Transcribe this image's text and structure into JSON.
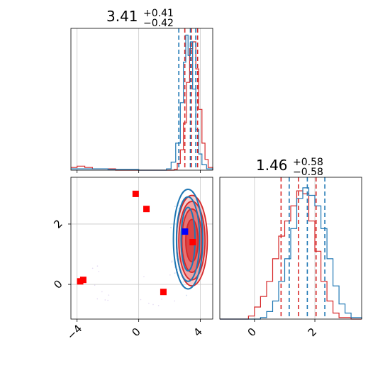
{
  "chart_data": {
    "type": "corner",
    "panels": {
      "hist_x": {
        "title": {
          "value": "3.41",
          "plus": "+0.41",
          "minus": "−0.42"
        },
        "xlim": [
          -4.4,
          4.8
        ],
        "quantiles": {
          "red": [
            2.99,
            3.41,
            3.82
          ],
          "blue": [
            2.6,
            3.35,
            3.7
          ]
        },
        "series": [
          {
            "color": "#d62728",
            "points": [
              [
                -4.4,
                0.2
              ],
              [
                -4.0,
                0.3
              ],
              [
                -3.5,
                0.2
              ],
              [
                -3.0,
                0.1
              ],
              [
                -2.5,
                0.1
              ],
              [
                -1.5,
                0.0
              ],
              [
                0.0,
                0.0
              ],
              [
                1.5,
                0.0
              ],
              [
                2.3,
                0.05
              ],
              [
                2.5,
                0.5
              ],
              [
                2.7,
                1.5
              ],
              [
                2.9,
                3.5
              ],
              [
                3.1,
                6.5
              ],
              [
                3.3,
                9.0
              ],
              [
                3.5,
                9.5
              ],
              [
                3.7,
                7.5
              ],
              [
                3.9,
                4.5
              ],
              [
                4.1,
                2.0
              ],
              [
                4.3,
                0.8
              ],
              [
                4.5,
                0.2
              ],
              [
                4.8,
                0.0
              ]
            ]
          },
          {
            "color": "#1f77b4",
            "points": [
              [
                -4.4,
                0.1
              ],
              [
                -2.0,
                0.05
              ],
              [
                0.0,
                0.0
              ],
              [
                1.8,
                0.1
              ],
              [
                2.1,
                0.6
              ],
              [
                2.4,
                2.0
              ],
              [
                2.7,
                5.0
              ],
              [
                2.9,
                8.0
              ],
              [
                3.05,
                10.0
              ],
              [
                3.2,
                8.5
              ],
              [
                3.35,
                9.5
              ],
              [
                3.5,
                6.0
              ],
              [
                3.7,
                3.0
              ],
              [
                3.9,
                1.2
              ],
              [
                4.1,
                0.4
              ],
              [
                4.4,
                0.1
              ],
              [
                4.8,
                0.0
              ]
            ]
          }
        ]
      },
      "scatter": {
        "xlim": [
          -4.4,
          4.8
        ],
        "ylim": [
          -1.15,
          3.55
        ],
        "xticks": [
          -4,
          0,
          4
        ],
        "yticks": [
          0,
          2
        ],
        "xtick_labels": [
          "−4",
          "0",
          "4"
        ],
        "ytick_labels": [
          "0",
          "2"
        ],
        "red_points": [
          [
            -0.2,
            3.0
          ],
          [
            0.5,
            2.5
          ],
          [
            -3.8,
            0.1
          ],
          [
            -3.6,
            0.15
          ],
          [
            1.6,
            -0.25
          ],
          [
            3.5,
            1.4
          ]
        ],
        "blue_points": [
          [
            3.0,
            1.75
          ]
        ],
        "red_contour": {
          "center": [
            3.45,
            1.45
          ],
          "radii": [
            [
              0.4,
              0.7
            ],
            [
              0.65,
              1.05
            ],
            [
              0.85,
              1.3
            ],
            [
              1.0,
              1.5
            ]
          ]
        },
        "blue_contour": {
          "center": [
            3.2,
            1.5
          ],
          "radii": [
            [
              0.45,
              1.05
            ],
            [
              0.75,
              1.4
            ],
            [
              0.95,
              1.65
            ]
          ]
        }
      },
      "hist_y": {
        "title": {
          "value": "1.46",
          "plus": "+0.58",
          "minus": "−0.58"
        },
        "xlim": [
          -1.15,
          3.55
        ],
        "xticks": [
          0,
          2
        ],
        "xtick_labels": [
          "0",
          "2"
        ],
        "quantiles": {
          "red": [
            0.88,
            1.46,
            2.04
          ],
          "blue": [
            1.15,
            1.75,
            2.33
          ]
        },
        "series": [
          {
            "color": "#d62728",
            "points": [
              [
                -1.15,
                0.0
              ],
              [
                -0.5,
                0.0
              ],
              [
                -0.2,
                0.2
              ],
              [
                0.0,
                0.8
              ],
              [
                0.2,
                1.5
              ],
              [
                0.4,
                2.5
              ],
              [
                0.6,
                4.0
              ],
              [
                0.8,
                5.5
              ],
              [
                1.0,
                6.5
              ],
              [
                1.2,
                7.5
              ],
              [
                1.4,
                8.5
              ],
              [
                1.6,
                8.3
              ],
              [
                1.8,
                6.5
              ],
              [
                2.0,
                4.5
              ],
              [
                2.2,
                2.5
              ],
              [
                2.4,
                1.2
              ],
              [
                2.6,
                0.4
              ],
              [
                2.8,
                0.1
              ],
              [
                3.2,
                0.0
              ],
              [
                3.55,
                0.0
              ]
            ]
          },
          {
            "color": "#1f77b4",
            "points": [
              [
                -1.15,
                0.0
              ],
              [
                0.0,
                0.0
              ],
              [
                0.2,
                0.1
              ],
              [
                0.4,
                0.5
              ],
              [
                0.6,
                1.2
              ],
              [
                0.8,
                2.5
              ],
              [
                1.0,
                4.0
              ],
              [
                1.2,
                6.0
              ],
              [
                1.4,
                8.0
              ],
              [
                1.6,
                8.7
              ],
              [
                1.8,
                8.2
              ],
              [
                2.0,
                7.5
              ],
              [
                2.2,
                6.0
              ],
              [
                2.4,
                4.0
              ],
              [
                2.6,
                2.2
              ],
              [
                2.8,
                1.0
              ],
              [
                3.0,
                0.4
              ],
              [
                3.2,
                0.1
              ],
              [
                3.55,
                0.0
              ]
            ]
          }
        ]
      }
    }
  }
}
